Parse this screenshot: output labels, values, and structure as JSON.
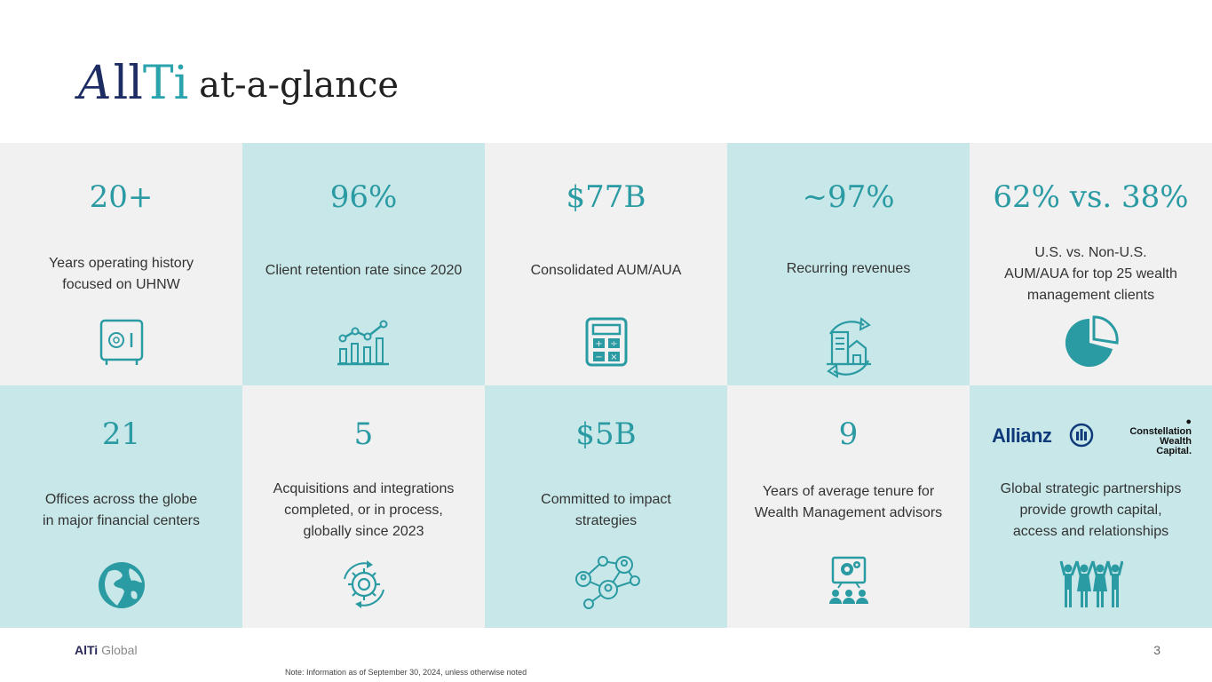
{
  "header": {
    "logo_a": "A",
    "logo_ll": "ll",
    "logo_ti": "Ti",
    "subtitle": "at-a-glance"
  },
  "tiles": [
    {
      "stat": "20+",
      "desc_lines": [
        "Years operating history",
        "focused on UHNW"
      ],
      "icon": "safe-icon"
    },
    {
      "stat": "96%",
      "desc_lines": [
        "Client retention rate since 2020"
      ],
      "icon": "growth-chart-icon"
    },
    {
      "stat": "$77B",
      "desc_lines": [
        "Consolidated AUM/AUA"
      ],
      "icon": "calculator-icon"
    },
    {
      "stat": "~97%",
      "desc_lines": [
        "Recurring revenues"
      ],
      "icon": "recurring-buildings-icon"
    },
    {
      "stat": "62% vs. 38%",
      "desc_lines": [
        "U.S. vs. Non-U.S.",
        "AUM/AUA for top 25 wealth",
        "management clients"
      ],
      "icon": "pie-chart-icon"
    },
    {
      "stat": "21",
      "desc_lines": [
        "Offices across the globe",
        "in major financial centers"
      ],
      "icon": "globe-icon"
    },
    {
      "stat": "5",
      "desc_lines": [
        "Acquisitions and integrations",
        "completed, or in process,",
        "globally since 2023"
      ],
      "icon": "gear-cycle-icon"
    },
    {
      "stat": "$5B",
      "desc_lines": [
        "Committed to impact",
        "strategies"
      ],
      "icon": "network-people-icon"
    },
    {
      "stat": "9",
      "desc_lines": [
        "Years of average tenure for",
        "Wealth Management advisors"
      ],
      "icon": "presentation-team-icon"
    },
    {
      "partner_1": "Allianz",
      "partner_2_lines": [
        "Constellation",
        "Wealth",
        "Capital."
      ],
      "desc_lines": [
        "Global strategic partnerships",
        "provide growth capital,",
        "access and relationships"
      ],
      "icon": "team-celebration-icon"
    }
  ],
  "footer": {
    "brand_bold": "AlTi",
    "brand_rest": " Global",
    "page_number": "3",
    "note": "Note: Information as of September 30, 2024, unless otherwise noted"
  },
  "colors": {
    "teal": "#2a9aa3",
    "teal_bg": "#c8e7e8",
    "gray_bg": "#f1f1f1",
    "navy": "#1d2c63"
  }
}
